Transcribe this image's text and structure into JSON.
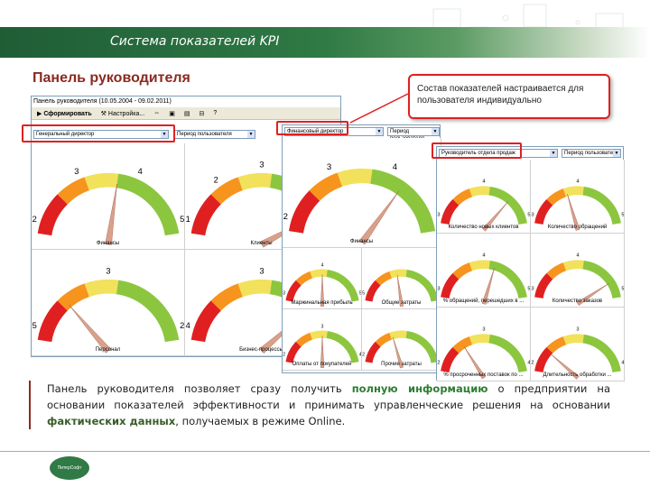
{
  "header": {
    "title": "Система показателей KPI"
  },
  "subtitle": "Панель руководителя",
  "window1": {
    "title": "Панель руководителя   (10.05.2004 - 09.02.2011)",
    "toolbar": {
      "generate": "Сформировать",
      "settings": "Настройка..."
    },
    "combo_role": "Генеральный директор",
    "combo_period": "Период пользователя"
  },
  "window2": {
    "combo_role": "Финансовый директор",
    "combo_period": "Период пользователя"
  },
  "window3": {
    "combo_role": "Руководитель отдела продаж",
    "combo_period": "Период пользователя"
  },
  "callout": {
    "text": "Состав показателей настраивается для пользователя индивидуально"
  },
  "gauges1": [
    {
      "label": "Финансы",
      "value": 0.55,
      "ticks": [
        "2",
        "3",
        "4",
        "5"
      ]
    },
    {
      "label": "Клиенты",
      "value": 0.88,
      "ticks": [
        "1",
        "2",
        "3",
        "4",
        "5"
      ]
    },
    {
      "label": "Персонал",
      "value": 0.25,
      "ticks": [
        "5",
        "3",
        "2"
      ]
    },
    {
      "label": "Бизнес-процессы",
      "value": 0.8,
      "ticks": [
        "4",
        "3",
        "2"
      ]
    }
  ],
  "gauges2": [
    {
      "label": "Финансы",
      "value": 0.72,
      "ticks": [
        "2",
        "3",
        "4",
        "5"
      ]
    },
    {
      "label": "Маржинальная прибыль",
      "value": 0.5,
      "ticks": [
        "3",
        "4",
        "5"
      ]
    },
    {
      "label": "Общие затраты",
      "value": 0.45,
      "ticks": [
        "5",
        "2"
      ]
    },
    {
      "label": "Оплаты от покупателей",
      "value": 0.5,
      "ticks": [
        "2",
        "3",
        "4"
      ]
    },
    {
      "label": "Прочие затраты",
      "value": 0.4,
      "ticks": [
        "2",
        "1"
      ]
    }
  ],
  "gauges3": [
    {
      "label": "Количество новых клиентов",
      "value": 0.75,
      "ticks": [
        "3",
        "4",
        "5"
      ]
    },
    {
      "label": "Количество обращений",
      "value": 0.4,
      "ticks": [
        "3",
        "4",
        "5"
      ]
    },
    {
      "label": "% обращений, перешедших в ...",
      "value": 0.6,
      "ticks": [
        "3",
        "4",
        "5"
      ]
    },
    {
      "label": "Количество заказов",
      "value": 0.85,
      "ticks": [
        "3",
        "4",
        "5"
      ]
    },
    {
      "label": "% просроченных поставок по ...",
      "value": 0.3,
      "ticks": [
        "2",
        "3",
        "4"
      ]
    },
    {
      "label": "Длительность обработки ...",
      "value": 0.2,
      "ticks": [
        "2",
        "3",
        "4"
      ]
    }
  ],
  "description": {
    "p1": "Панель руководителя позволяет сразу получить ",
    "h1": "полную информацию",
    "p2": " о предприятии на основании показателей эффективности и принимать управленческие решения на основании ",
    "h2": "фактических данных",
    "p3": ", получаемых в режиме Online."
  },
  "logo": {
    "text": "ПитерСофт"
  },
  "colors": {
    "red": "#e02020",
    "orange": "#f7941d",
    "yellow": "#f2e15a",
    "green": "#8cc63f",
    "needle": "#d9a08a"
  }
}
